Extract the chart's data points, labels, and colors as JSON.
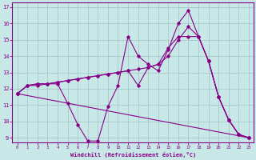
{
  "xlabel": "Windchill (Refroidissement éolien,°C)",
  "xlim": [
    -0.5,
    23.5
  ],
  "ylim": [
    8.7,
    17.3
  ],
  "yticks": [
    9,
    10,
    11,
    12,
    13,
    14,
    15,
    16,
    17
  ],
  "xticks": [
    0,
    1,
    2,
    3,
    4,
    5,
    6,
    7,
    8,
    9,
    10,
    11,
    12,
    13,
    14,
    15,
    16,
    17,
    18,
    19,
    20,
    21,
    22,
    23
  ],
  "bg_color": "#c8e8e8",
  "line_color": "#880088",
  "grid_color": "#99bbbb",
  "line1_x": [
    0,
    1,
    2,
    3,
    4,
    5,
    6,
    7,
    8,
    9,
    10,
    11,
    12,
    13,
    14,
    15,
    16,
    17,
    18,
    19,
    20,
    21,
    22,
    23
  ],
  "line1_y": [
    11.7,
    12.2,
    12.2,
    12.3,
    12.3,
    11.1,
    9.8,
    8.8,
    8.8,
    10.9,
    12.2,
    15.2,
    14.0,
    13.5,
    13.1,
    14.4,
    16.0,
    16.8,
    15.2,
    13.7,
    11.5,
    10.1,
    9.2,
    9.0
  ],
  "line2_x": [
    0,
    1,
    2,
    3,
    4,
    5,
    6,
    7,
    8,
    9,
    10,
    11,
    12,
    13,
    14,
    15,
    16,
    17,
    18,
    19,
    20,
    21,
    22,
    23
  ],
  "line2_y": [
    11.7,
    12.2,
    12.3,
    12.3,
    12.4,
    12.5,
    12.6,
    12.7,
    12.8,
    12.9,
    13.0,
    13.1,
    12.2,
    13.3,
    13.5,
    14.5,
    15.2,
    15.2,
    15.2,
    13.7,
    11.5,
    10.1,
    9.2,
    9.0
  ],
  "line3_x": [
    0,
    23
  ],
  "line3_y": [
    11.7,
    9.0
  ],
  "line4_x": [
    0,
    1,
    2,
    3,
    4,
    5,
    6,
    7,
    8,
    9,
    10,
    11,
    12,
    13,
    14,
    15,
    16,
    17,
    18,
    19,
    20,
    21,
    22,
    23
  ],
  "line4_y": [
    11.7,
    12.2,
    12.3,
    12.3,
    12.4,
    12.5,
    12.6,
    12.7,
    12.8,
    12.9,
    13.0,
    13.1,
    13.2,
    13.3,
    13.5,
    14.0,
    15.0,
    15.8,
    15.2,
    13.7,
    11.5,
    10.1,
    9.2,
    9.0
  ]
}
